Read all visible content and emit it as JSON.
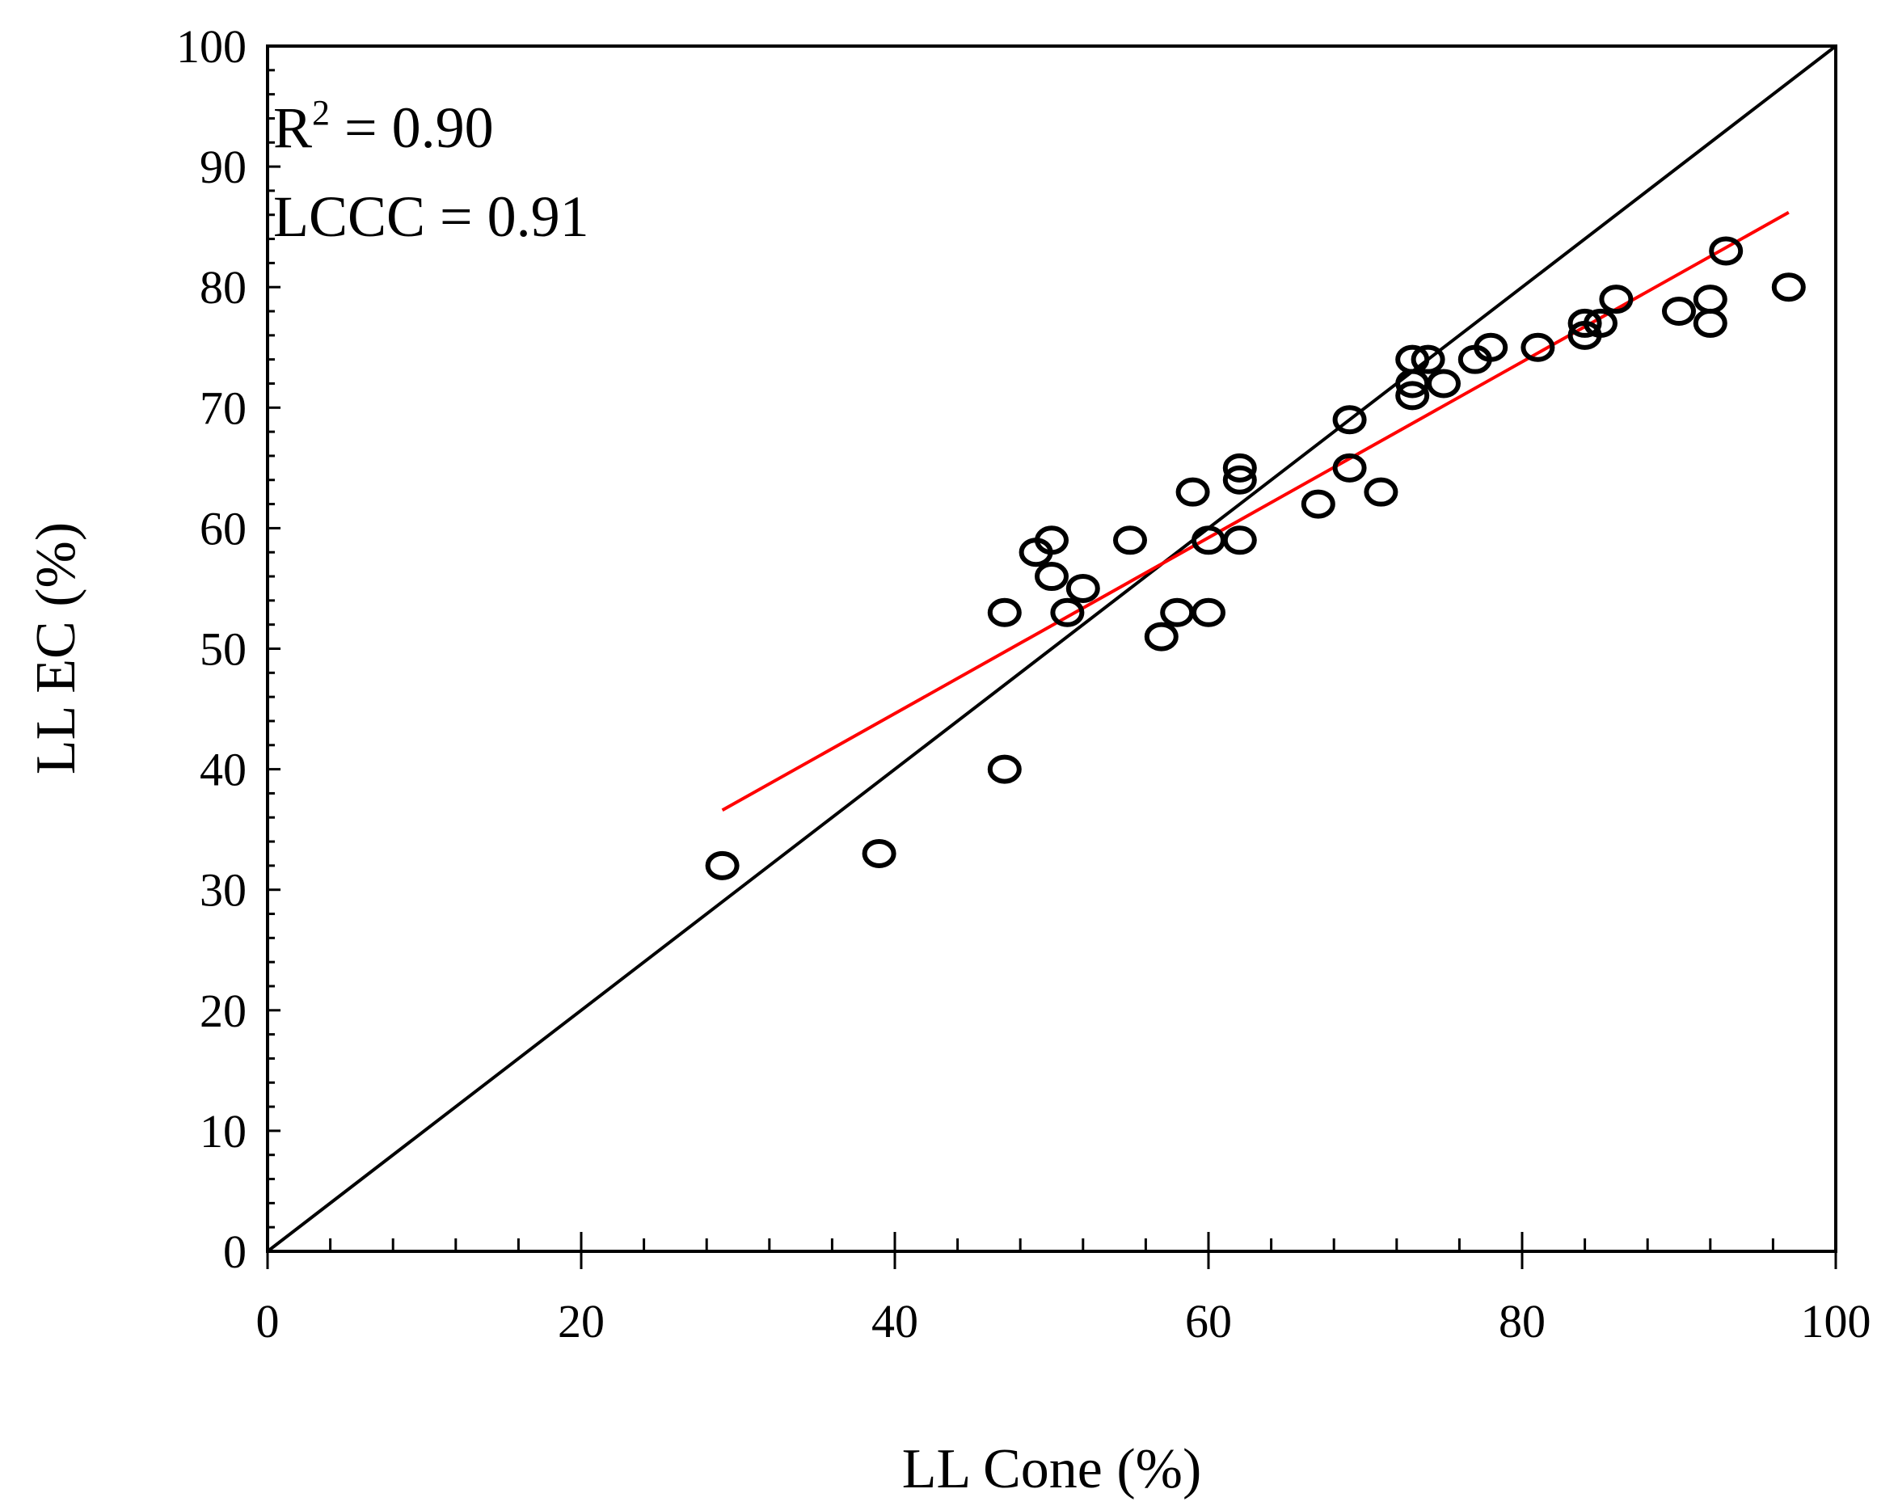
{
  "chart_data": {
    "type": "scatter",
    "xlabel": "LL Cone (%)",
    "ylabel": "LL EC (%)",
    "xlim": [
      0,
      100
    ],
    "ylim": [
      0,
      100
    ],
    "x_ticks": [
      "0",
      "20",
      "40",
      "60",
      "80",
      "100"
    ],
    "y_ticks": [
      "0",
      "10",
      "20",
      "30",
      "40",
      "50",
      "60",
      "70",
      "80",
      "90",
      "100"
    ],
    "annotations": {
      "r2_prefix": "R",
      "r2_sup": "2",
      "r2_value": " = 0.90",
      "lccc": "LCCC = 0.91"
    },
    "colors": {
      "points": "#000000",
      "one_to_one": "#000000",
      "fit": "#ff0000"
    },
    "one_to_one_line": {
      "x": [
        0,
        100
      ],
      "y": [
        0,
        100
      ]
    },
    "fit_line": {
      "x": [
        29,
        97
      ],
      "y": [
        36.6,
        86.2
      ]
    },
    "series": [
      {
        "name": "Samples",
        "points": [
          [
            29,
            32
          ],
          [
            39,
            33
          ],
          [
            47,
            40
          ],
          [
            47,
            53
          ],
          [
            49,
            58
          ],
          [
            50,
            59
          ],
          [
            50,
            56
          ],
          [
            51,
            53
          ],
          [
            52,
            55
          ],
          [
            55,
            59
          ],
          [
            57,
            51
          ],
          [
            58,
            53
          ],
          [
            59,
            63
          ],
          [
            60,
            59
          ],
          [
            60,
            53
          ],
          [
            62,
            65
          ],
          [
            62,
            64
          ],
          [
            62,
            59
          ],
          [
            67,
            62
          ],
          [
            69,
            69
          ],
          [
            69,
            65
          ],
          [
            71,
            63
          ],
          [
            73,
            74
          ],
          [
            73,
            72
          ],
          [
            73,
            71
          ],
          [
            74,
            74
          ],
          [
            75,
            72
          ],
          [
            77,
            74
          ],
          [
            78,
            75
          ],
          [
            81,
            75
          ],
          [
            84,
            77
          ],
          [
            84,
            76
          ],
          [
            85,
            77
          ],
          [
            86,
            79
          ],
          [
            90,
            78
          ],
          [
            92,
            79
          ],
          [
            92,
            77
          ],
          [
            93,
            83
          ],
          [
            97,
            80
          ]
        ]
      }
    ]
  }
}
